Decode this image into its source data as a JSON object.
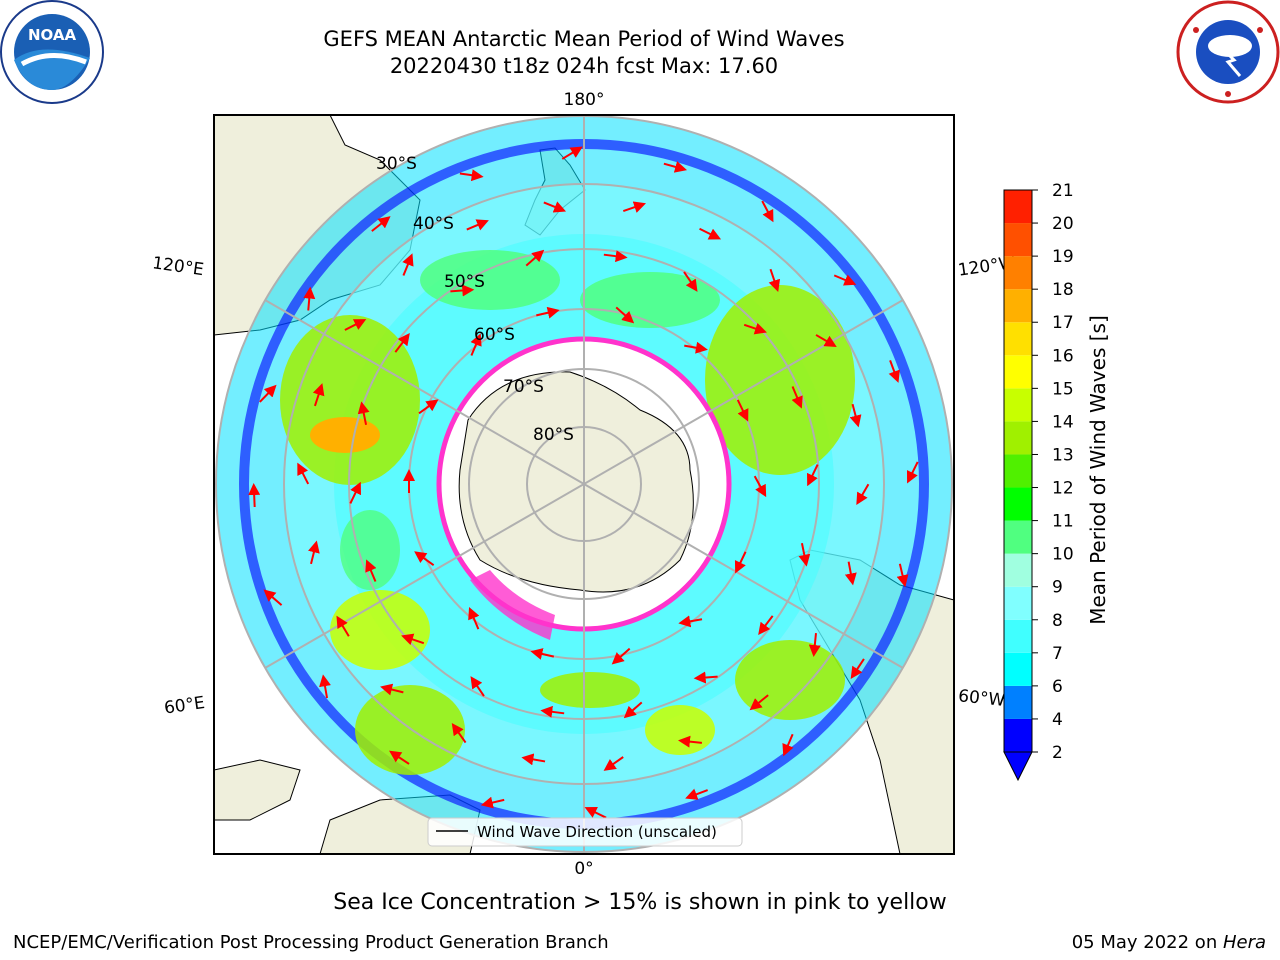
{
  "title": {
    "line1": "GEFS MEAN Antarctic Mean Period of Wind Waves",
    "line2": "20220430 t18z 024h fcst   Max: 17.60"
  },
  "logos": {
    "noaa": {
      "text": "NOAA",
      "ring_text": "NATIONAL OCEANIC AND ATMOSPHERIC ADMINISTRATION · U.S. DEPARTMENT OF COMMERCE"
    },
    "nws": {
      "ring_text": "NATIONAL WEATHER SERVICE"
    }
  },
  "map": {
    "projection": "south-polar-stereographic",
    "lon_labels": {
      "top": "180°",
      "bottom": "0°",
      "upper_left": "120°E",
      "upper_right": "120°W",
      "lower_left": "60°E",
      "lower_right": "60°W"
    },
    "lat_labels": [
      "30°S",
      "40°S",
      "50°S",
      "60°S",
      "70°S",
      "80°S"
    ],
    "legend_label": "Wind Wave Direction (unscaled)",
    "colors": {
      "land": "#efefdc",
      "ice_edge": "#ff33cc",
      "ice_fill": "#ffffff",
      "arrow": "#ff0000",
      "grid": "#b0b0b0"
    }
  },
  "colorbar": {
    "label": "Mean Period of Wind Waves [s]",
    "ticks": [
      2,
      4,
      6,
      7,
      8,
      9,
      10,
      11,
      12,
      13,
      14,
      15,
      16,
      17,
      18,
      19,
      20,
      21
    ],
    "colors": [
      "#0000ff",
      "#0080ff",
      "#00ffff",
      "#40ffff",
      "#80ffff",
      "#a0ffe0",
      "#50ff80",
      "#00ff00",
      "#50f000",
      "#a0f000",
      "#c8ff00",
      "#ffff00",
      "#ffe000",
      "#ffb000",
      "#ff8000",
      "#ff5000",
      "#ff2000",
      "#ff0000"
    ],
    "extend_color": "#0000ff"
  },
  "notes": {
    "ice": "Sea Ice Concentration > 15% is shown in pink to yellow"
  },
  "footer": {
    "left": "NCEP/EMC/Verification Post Processing Product Generation Branch",
    "right_date": "05 May 2022 on ",
    "right_host": "Hera"
  }
}
